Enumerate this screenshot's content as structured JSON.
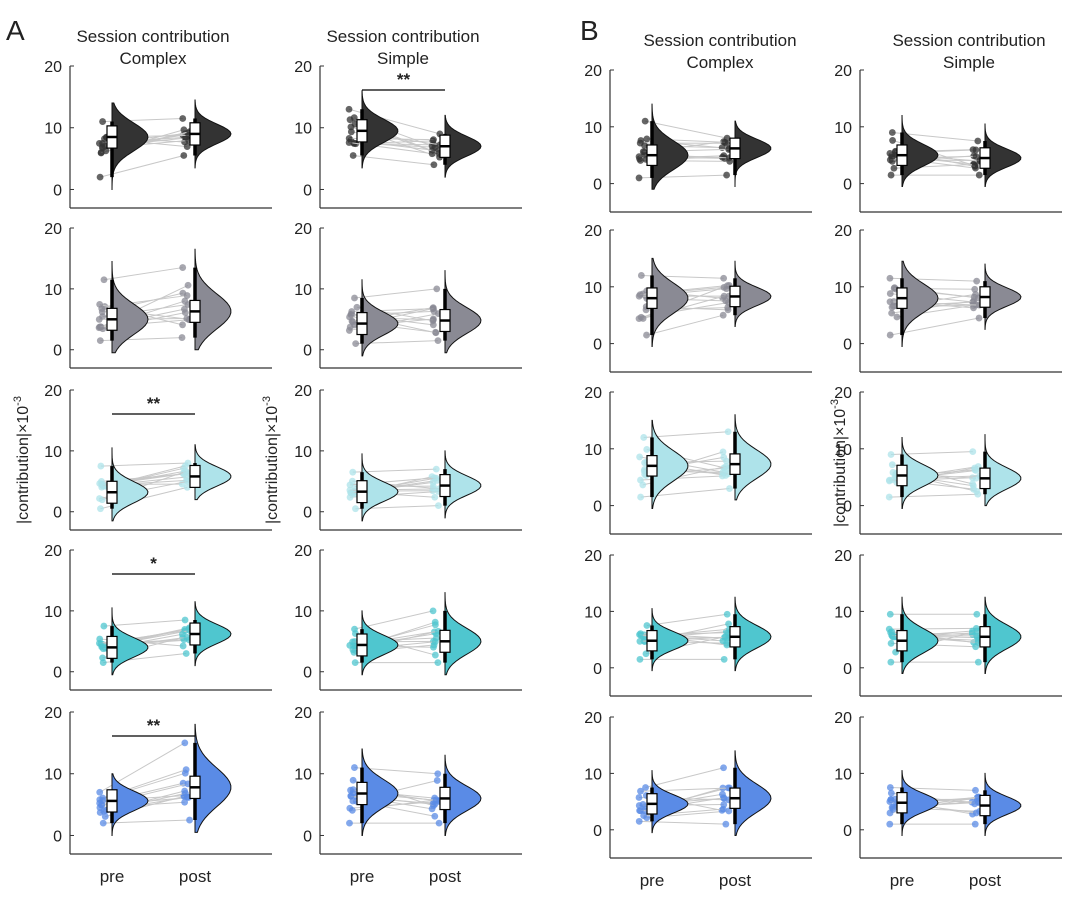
{
  "panels": {
    "A": {
      "letter": "A",
      "columns": [
        {
          "title_line1": "Session contribution",
          "title_line2": "Complex"
        },
        {
          "title_line1": "Session contribution",
          "title_line2": "Simple"
        }
      ]
    },
    "B": {
      "letter": "B",
      "columns": [
        {
          "title_line1": "Session contribution",
          "title_line2": "Complex"
        },
        {
          "title_line1": "Session contribution",
          "title_line2": "Simple"
        }
      ]
    }
  },
  "ylabel": "|contribution|×10",
  "ylabel_exp": "-3",
  "chart_data": [
    {
      "type": "raincloud",
      "panel": "A",
      "x_categories": [
        "pre",
        "post"
      ],
      "ylim": [
        -3,
        20
      ],
      "yticks": [
        0,
        10,
        20
      ],
      "y_unit": "|contribution|×10^-3",
      "colors": [
        "#333333",
        "#8a8a94",
        "#aee3ea",
        "#4fc6cf",
        "#5a8be6"
      ],
      "columns": [
        {
          "name": "Complex",
          "rows": [
            {
              "pre_median": 8.5,
              "post_median": 9.0,
              "pre_range": [
                2,
                11
              ],
              "post_range": [
                5.5,
                11.5
              ],
              "significance": ""
            },
            {
              "pre_median": 5.0,
              "post_median": 6.3,
              "pre_range": [
                1.5,
                11.5
              ],
              "post_range": [
                2,
                13.5
              ],
              "significance": ""
            },
            {
              "pre_median": 3.2,
              "post_median": 5.8,
              "pre_range": [
                0.5,
                7.5
              ],
              "post_range": [
                4,
                8
              ],
              "significance": "**"
            },
            {
              "pre_median": 4.0,
              "post_median": 6.2,
              "pre_range": [
                1.5,
                7.5
              ],
              "post_range": [
                3,
                8.5
              ],
              "significance": "*"
            },
            {
              "pre_median": 5.6,
              "post_median": 7.8,
              "pre_range": [
                2,
                7
              ],
              "post_range": [
                2.5,
                15
              ],
              "significance": "**"
            }
          ]
        },
        {
          "name": "Simple",
          "rows": [
            {
              "pre_median": 9.5,
              "post_median": 7.0,
              "pre_range": [
                5.5,
                13
              ],
              "post_range": [
                4,
                9
              ],
              "significance": "**"
            },
            {
              "pre_median": 4.3,
              "post_median": 4.8,
              "pre_range": [
                1,
                8.5
              ],
              "post_range": [
                1.5,
                10
              ],
              "significance": ""
            },
            {
              "pre_median": 3.3,
              "post_median": 4.3,
              "pre_range": [
                0.5,
                6.5
              ],
              "post_range": [
                1,
                7
              ],
              "significance": ""
            },
            {
              "pre_median": 4.4,
              "post_median": 5.0,
              "pre_range": [
                1.5,
                7
              ],
              "post_range": [
                1.5,
                10
              ],
              "significance": ""
            },
            {
              "pre_median": 6.8,
              "post_median": 6.0,
              "pre_range": [
                2,
                11
              ],
              "post_range": [
                2,
                10
              ],
              "significance": ""
            }
          ]
        }
      ]
    },
    {
      "type": "raincloud",
      "panel": "B",
      "x_categories": [
        "pre",
        "post"
      ],
      "ylim": [
        -5,
        20
      ],
      "yticks": [
        0,
        10,
        20
      ],
      "y_unit": "|contribution|×10^-3",
      "colors": [
        "#333333",
        "#8a8a94",
        "#aee3ea",
        "#4fc6cf",
        "#5a8be6"
      ],
      "columns": [
        {
          "name": "Complex",
          "rows": [
            {
              "pre_median": 5.0,
              "post_median": 6.2,
              "pre_range": [
                1,
                11
              ],
              "post_range": [
                1.5,
                8
              ]
            },
            {
              "pre_median": 8.0,
              "post_median": 8.3,
              "pre_range": [
                1.5,
                12
              ],
              "post_range": [
                5,
                11.5
              ]
            },
            {
              "pre_median": 7.0,
              "post_median": 7.3,
              "pre_range": [
                1.5,
                12
              ],
              "post_range": [
                3,
                13
              ]
            },
            {
              "pre_median": 4.8,
              "post_median": 5.5,
              "pre_range": [
                1.5,
                7.5
              ],
              "post_range": [
                1.5,
                9.5
              ]
            },
            {
              "pre_median": 4.6,
              "post_median": 5.6,
              "pre_range": [
                1.5,
                7.5
              ],
              "post_range": [
                1,
                11
              ]
            }
          ]
        },
        {
          "name": "Simple",
          "rows": [
            {
              "pre_median": 5.0,
              "post_median": 4.5,
              "pre_range": [
                1.5,
                9
              ],
              "post_range": [
                1.5,
                7.5
              ]
            },
            {
              "pre_median": 8.0,
              "post_median": 8.2,
              "pre_range": [
                1.5,
                11.5
              ],
              "post_range": [
                4.5,
                11
              ]
            },
            {
              "pre_median": 5.3,
              "post_median": 4.8,
              "pre_range": [
                1.5,
                9
              ],
              "post_range": [
                2,
                9.5
              ]
            },
            {
              "pre_median": 4.8,
              "post_median": 5.5,
              "pre_range": [
                1,
                9.5
              ],
              "post_range": [
                1,
                9.5
              ]
            },
            {
              "pre_median": 4.8,
              "post_median": 4.3,
              "pre_range": [
                1,
                7.5
              ],
              "post_range": [
                1,
                7
              ]
            }
          ]
        }
      ]
    }
  ]
}
